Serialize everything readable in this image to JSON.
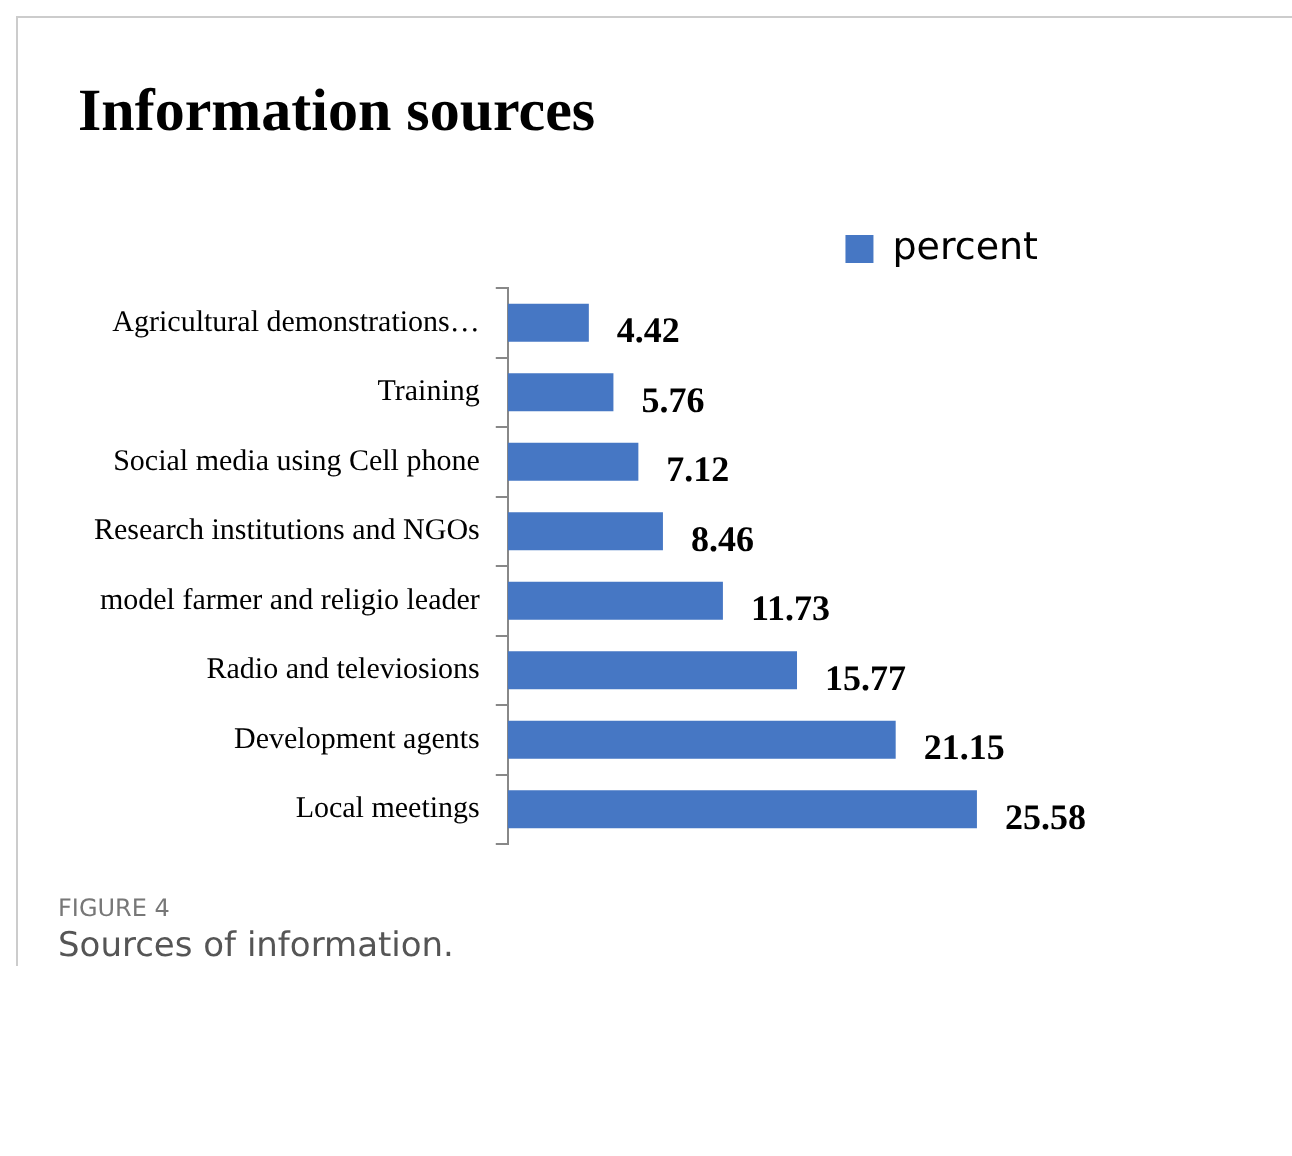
{
  "chart_data": {
    "type": "bar",
    "orientation": "horizontal",
    "title": "Information sources",
    "categories": [
      "Agricultural demonstrations…",
      "Training",
      "Social media using Cell phone",
      "Research institutions and NGOs",
      "model farmer and religio leader",
      "Radio and televiosions",
      "Development agents",
      "Local meetings"
    ],
    "series": [
      {
        "name": "percent",
        "color": "#4677c4",
        "values": [
          4.42,
          5.76,
          7.12,
          8.46,
          11.73,
          15.77,
          21.15,
          25.58
        ]
      }
    ],
    "data_labels": true,
    "legend": "top right",
    "grid": false,
    "tick_labels": "y",
    "annotations": [
      "FIGURE 4",
      "Sources of information."
    ]
  }
}
